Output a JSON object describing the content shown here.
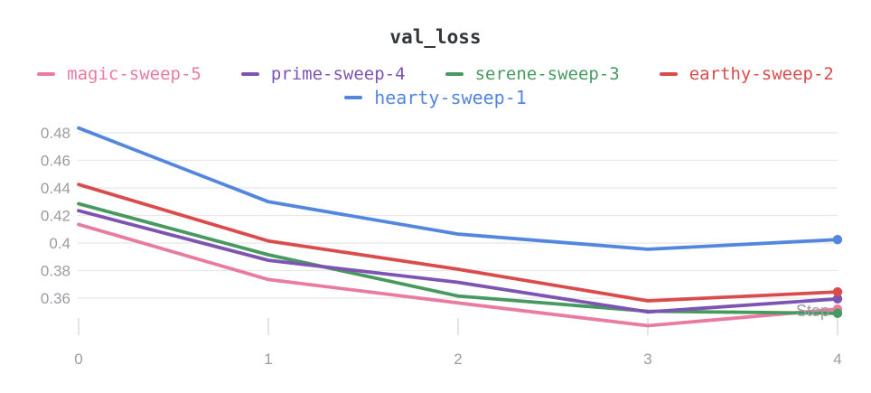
{
  "chart_data": {
    "type": "line",
    "title": "val_loss",
    "xlabel": "Step",
    "x": [
      0,
      1,
      2,
      3,
      4
    ],
    "xtick_labels": [
      "0",
      "1",
      "2",
      "3",
      "4"
    ],
    "ytick_values": [
      0.48,
      0.46,
      0.44,
      0.42,
      0.4,
      0.38,
      0.36
    ],
    "ytick_labels": [
      "0.48",
      "0.46",
      "0.44",
      "0.42",
      "0.4",
      "0.38",
      "0.36"
    ],
    "xlim": [
      0,
      4
    ],
    "ylim": [
      0.335,
      0.49
    ],
    "grid": "horizontal",
    "legend_position": "top",
    "legend_rows": [
      [
        "magic-sweep-5",
        "prime-sweep-4",
        "serene-sweep-3",
        "earthy-sweep-2"
      ],
      [
        "hearty-sweep-1"
      ]
    ],
    "draw_order": [
      "magic-sweep-5",
      "serene-sweep-3",
      "prime-sweep-4",
      "earthy-sweep-2",
      "hearty-sweep-1"
    ],
    "series": [
      {
        "name": "magic-sweep-5",
        "color": "#E87B9F",
        "values": [
          0.4135,
          0.3735,
          0.3565,
          0.34,
          0.352
        ]
      },
      {
        "name": "prime-sweep-4",
        "color": "#7D54B2",
        "values": [
          0.4235,
          0.3875,
          0.3715,
          0.35,
          0.3595
        ]
      },
      {
        "name": "serene-sweep-3",
        "color": "#479A5F",
        "values": [
          0.4285,
          0.3915,
          0.3615,
          0.3505,
          0.349
        ]
      },
      {
        "name": "earthy-sweep-2",
        "color": "#DA4C4C",
        "values": [
          0.4425,
          0.4015,
          0.381,
          0.358,
          0.3645
        ]
      },
      {
        "name": "hearty-sweep-1",
        "color": "#5387DD",
        "values": [
          0.4835,
          0.43,
          0.4065,
          0.3955,
          0.4025
        ]
      }
    ],
    "style": {
      "grid_color": "#E8E8EB",
      "tick_color": "#DCDCE1",
      "axis_text_color": "#9B9BA1",
      "title_color": "#33373c"
    }
  }
}
